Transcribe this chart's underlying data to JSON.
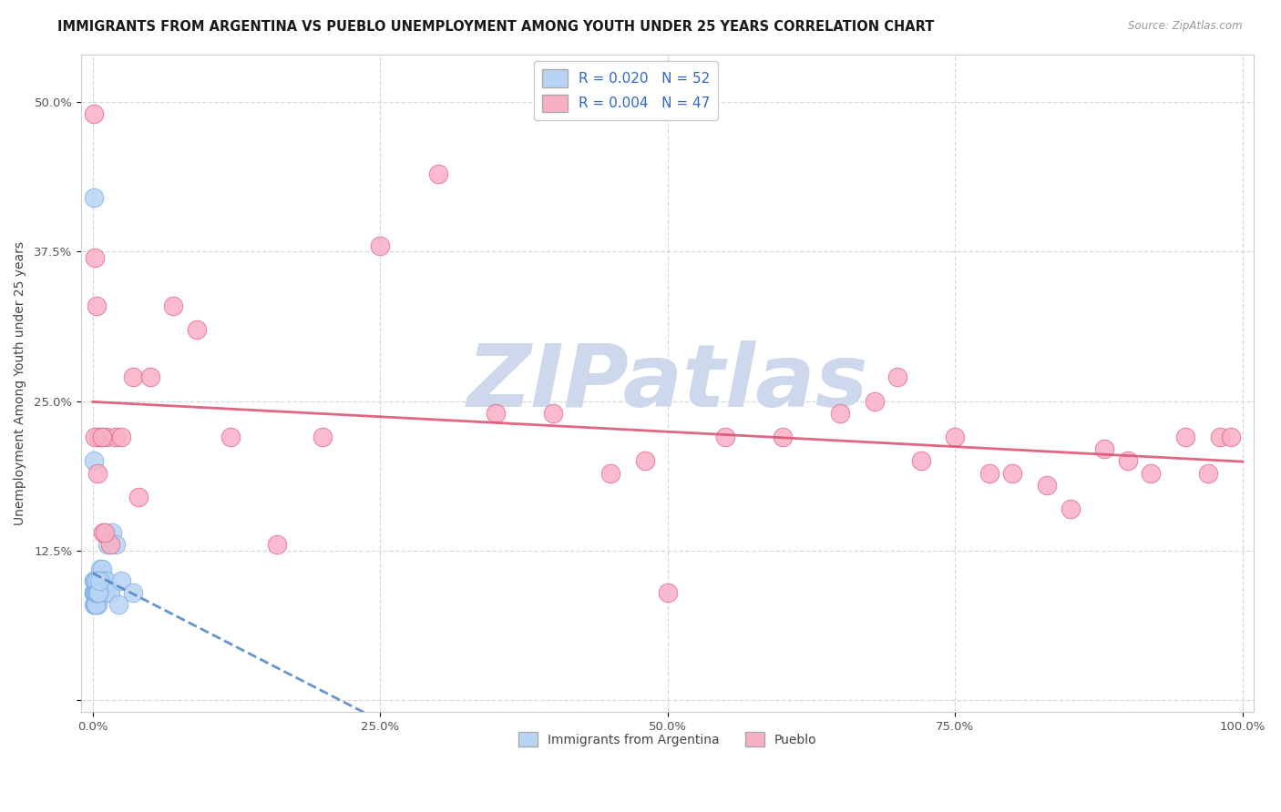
{
  "title": "IMMIGRANTS FROM ARGENTINA VS PUEBLO UNEMPLOYMENT AMONG YOUTH UNDER 25 YEARS CORRELATION CHART",
  "source": "Source: ZipAtlas.com",
  "ylabel": "Unemployment Among Youth under 25 years",
  "xlim": [
    -1,
    101
  ],
  "ylim": [
    -1,
    54
  ],
  "x_ticks": [
    0,
    25,
    50,
    75,
    100
  ],
  "x_tick_labels": [
    "0.0%",
    "25.0%",
    "50.0%",
    "75.0%",
    "100.0%"
  ],
  "y_ticks": [
    0,
    12.5,
    25,
    37.5,
    50
  ],
  "y_tick_labels": [
    "",
    "12.5%",
    "25.0%",
    "37.5%",
    "50.0%"
  ],
  "series1_label": "Immigrants from Argentina",
  "series1_color": "#b8d4f5",
  "series1_edge_color": "#7aaae0",
  "series1_R": "0.020",
  "series1_N": "52",
  "series1_x": [
    0.05,
    0.08,
    0.1,
    0.12,
    0.15,
    0.18,
    0.2,
    0.22,
    0.25,
    0.28,
    0.3,
    0.32,
    0.35,
    0.38,
    0.4,
    0.42,
    0.45,
    0.48,
    0.5,
    0.55,
    0.6,
    0.65,
    0.7,
    0.75,
    0.8,
    0.85,
    0.9,
    0.95,
    1.0,
    1.1,
    1.2,
    1.3,
    1.5,
    1.7,
    2.0,
    2.2,
    2.5,
    0.06,
    0.09,
    0.11,
    0.14,
    0.17,
    0.19,
    0.23,
    0.27,
    0.31,
    0.36,
    0.41,
    0.46,
    0.52,
    0.58,
    3.5
  ],
  "series1_y": [
    42,
    8,
    10,
    9,
    10,
    9,
    8,
    9,
    8,
    10,
    9,
    8,
    10,
    9,
    8,
    9,
    9,
    9,
    10,
    9,
    10,
    11,
    9,
    10,
    11,
    9,
    9,
    10,
    9,
    9,
    10,
    13,
    9,
    14,
    13,
    8,
    10,
    20,
    9,
    9,
    9,
    10,
    9,
    8,
    9,
    9,
    10,
    9,
    9,
    9,
    10,
    9
  ],
  "series2_label": "Pueblo",
  "series2_color": "#f8b0c5",
  "series2_edge_color": "#e06080",
  "series2_R": "0.004",
  "series2_N": "47",
  "series2_x": [
    0.1,
    0.2,
    0.3,
    0.5,
    0.7,
    0.9,
    1.2,
    1.5,
    2.0,
    2.5,
    3.5,
    5.0,
    7.0,
    9.0,
    12.0,
    16.0,
    20.0,
    25.0,
    30.0,
    35.0,
    40.0,
    45.0,
    48.0,
    50.0,
    55.0,
    60.0,
    65.0,
    68.0,
    70.0,
    72.0,
    75.0,
    78.0,
    80.0,
    83.0,
    85.0,
    88.0,
    90.0,
    92.0,
    95.0,
    97.0,
    98.0,
    99.0,
    0.15,
    0.4,
    0.8,
    1.0,
    4.0
  ],
  "series2_y": [
    49,
    37,
    33,
    22,
    22,
    14,
    22,
    13,
    22,
    22,
    27,
    27,
    33,
    31,
    22,
    13,
    22,
    38,
    44,
    24,
    24,
    19,
    20,
    9,
    22,
    22,
    24,
    25,
    27,
    20,
    22,
    19,
    19,
    18,
    16,
    21,
    20,
    19,
    22,
    19,
    22,
    22,
    22,
    19,
    22,
    14,
    17
  ],
  "background_color": "#ffffff",
  "watermark_text": "ZIPatlas",
  "watermark_color": "#cdd8ec",
  "grid_color": "#d8d8d8",
  "trend1_color": "#5588cc",
  "trend2_color": "#dd5577",
  "title_fontsize": 10.5,
  "axis_label_fontsize": 10,
  "tick_fontsize": 9.5,
  "legend_fontsize": 11,
  "marker_size": 220
}
